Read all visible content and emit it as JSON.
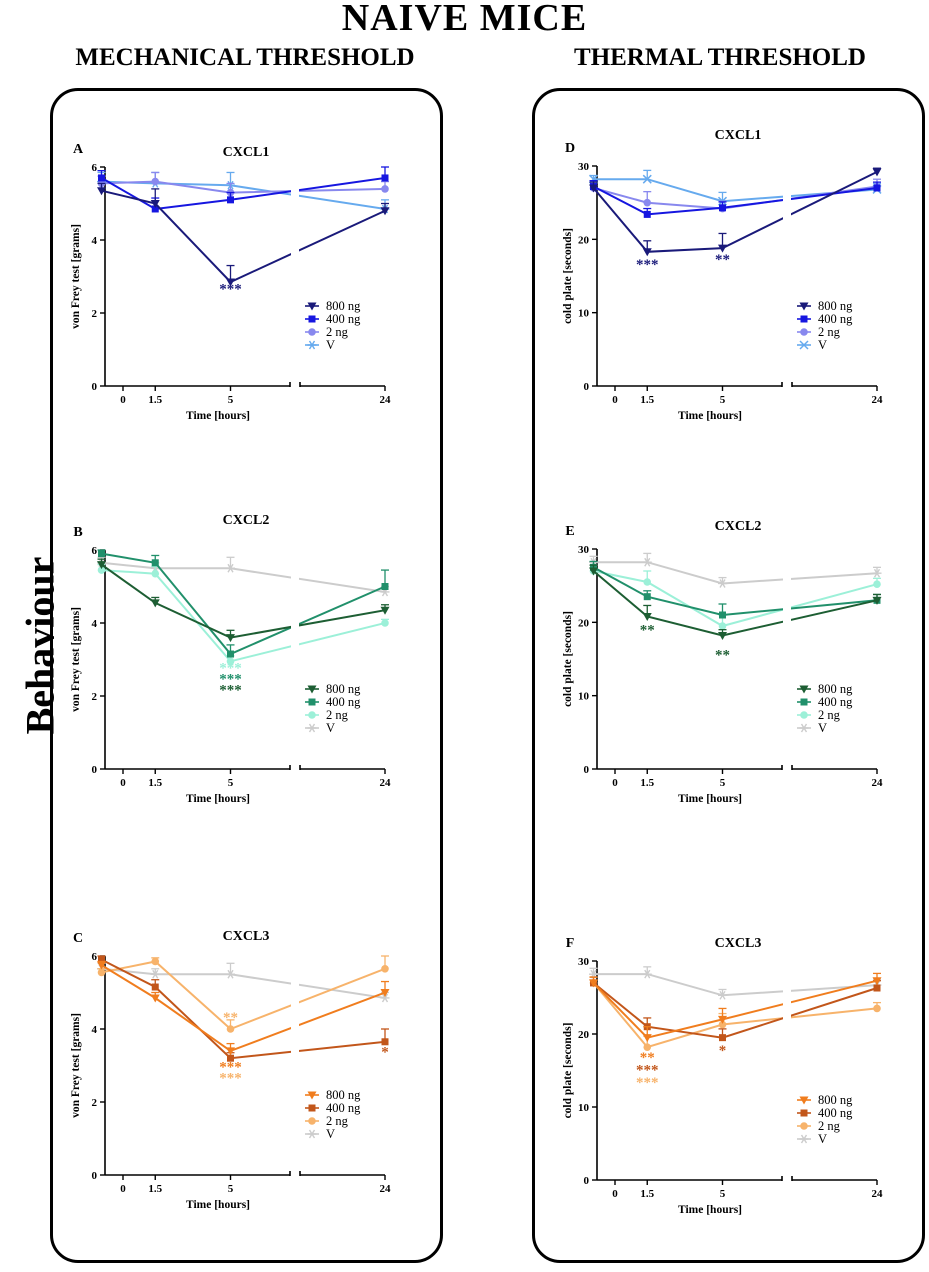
{
  "title": "NAIVE MICE",
  "side_label": "Behaviour",
  "columns": [
    {
      "title": "MECHANICAL THRESHOLD"
    },
    {
      "title": "THERMAL THRESHOLD"
    }
  ],
  "colors": {
    "cxcl1": {
      "800 ng": "#1a1a7a",
      "400 ng": "#1616e0",
      "2 ng": "#8888ee",
      "V": "#66aaee"
    },
    "cxcl2": {
      "800 ng": "#1d5e33",
      "400 ng": "#21906b",
      "2 ng": "#9cf0d8",
      "V": "#cccccc"
    },
    "cxcl3": {
      "800 ng": "#f07d1e",
      "400 ng": "#c2561a",
      "2 ng": "#f7b36b",
      "V": "#cccccc"
    }
  },
  "chart_data": [
    {
      "id": "A",
      "type": "line",
      "title": "CXCL1",
      "xlabel": "Time [hours]",
      "ylabel": "von Frey test [grams]",
      "ylim": [
        0,
        6
      ],
      "yticks": [
        "0",
        "2",
        "4",
        "6"
      ],
      "xticks": [
        "0",
        "1.5",
        "5",
        "24"
      ],
      "x_positions": [
        -1,
        1.5,
        5,
        24
      ],
      "series": [
        {
          "name": "800 ng",
          "marker": "tri",
          "values": [
            5.35,
            5.0,
            2.85,
            4.8
          ],
          "errors": [
            0.2,
            0.4,
            0.45,
            0.2
          ]
        },
        {
          "name": "400 ng",
          "marker": "square",
          "values": [
            5.7,
            4.85,
            5.1,
            5.7
          ],
          "errors": [
            0.2,
            0.3,
            0.2,
            0.3
          ]
        },
        {
          "name": "2 ng",
          "marker": "circle",
          "values": [
            5.55,
            5.6,
            5.3,
            5.4
          ],
          "errors": [
            0.2,
            0.25,
            0.25,
            0.2
          ]
        },
        {
          "name": "V",
          "marker": "star",
          "values": [
            5.6,
            5.55,
            5.5,
            4.85
          ],
          "errors": [
            0.25,
            0.3,
            0.35,
            0.25
          ]
        }
      ],
      "annotations": [
        {
          "x": 5,
          "y": 2.65,
          "text": "***",
          "series": "800 ng"
        }
      ]
    },
    {
      "id": "B",
      "type": "line",
      "title": "CXCL2",
      "xlabel": "Time [hours]",
      "ylabel": "von Frey test [grams]",
      "ylim": [
        0,
        6
      ],
      "yticks": [
        "0",
        "2",
        "4",
        "6"
      ],
      "xticks": [
        "0",
        "1.5",
        "5",
        "24"
      ],
      "x_positions": [
        -1,
        1.5,
        5,
        24
      ],
      "series": [
        {
          "name": "800 ng",
          "marker": "tri",
          "values": [
            5.6,
            4.55,
            3.6,
            4.35
          ],
          "errors": [
            0.15,
            0.15,
            0.2,
            0.15
          ]
        },
        {
          "name": "400 ng",
          "marker": "square",
          "values": [
            5.9,
            5.65,
            3.15,
            5.0
          ],
          "errors": [
            0.1,
            0.2,
            0.25,
            0.45
          ]
        },
        {
          "name": "2 ng",
          "marker": "circle",
          "values": [
            5.45,
            5.35,
            2.95,
            4.0
          ],
          "errors": [
            0.15,
            0.2,
            0.15,
            0.1
          ]
        },
        {
          "name": "V",
          "marker": "star",
          "values": [
            5.65,
            5.5,
            5.5,
            4.85
          ],
          "errors": [
            0.15,
            0.15,
            0.3,
            0.15
          ]
        }
      ],
      "annotations": [
        {
          "x": 5,
          "y": 2.75,
          "text": "***",
          "series": "2 ng"
        },
        {
          "x": 5,
          "y": 2.45,
          "text": "***",
          "series": "400 ng"
        },
        {
          "x": 5,
          "y": 2.15,
          "text": "***",
          "series": "800 ng"
        }
      ]
    },
    {
      "id": "C",
      "type": "line",
      "title": "CXCL3",
      "xlabel": "Time [hours]",
      "ylabel": "von Frey test [grams]",
      "ylim": [
        0,
        6
      ],
      "yticks": [
        "0",
        "2",
        "4",
        "6"
      ],
      "xticks": [
        "0",
        "1.5",
        "5",
        "24"
      ],
      "x_positions": [
        -1,
        1.5,
        5,
        24
      ],
      "series": [
        {
          "name": "800 ng",
          "marker": "tri",
          "values": [
            5.75,
            4.85,
            3.4,
            5.0
          ],
          "errors": [
            0.1,
            0.15,
            0.2,
            0.3
          ]
        },
        {
          "name": "400 ng",
          "marker": "square",
          "values": [
            5.9,
            5.15,
            3.2,
            3.65
          ],
          "errors": [
            0.1,
            0.2,
            0.15,
            0.35
          ]
        },
        {
          "name": "2 ng",
          "marker": "circle",
          "values": [
            5.55,
            5.85,
            4.0,
            5.65
          ],
          "errors": [
            0.1,
            0.1,
            0.25,
            0.35
          ]
        },
        {
          "name": "V",
          "marker": "star",
          "values": [
            5.65,
            5.5,
            5.5,
            4.85
          ],
          "errors": [
            0.15,
            0.15,
            0.3,
            0.15
          ]
        }
      ],
      "annotations": [
        {
          "x": 5,
          "y": 4.3,
          "text": "**",
          "series": "2 ng"
        },
        {
          "x": 5,
          "y": 2.95,
          "text": "***",
          "series": "800 ng"
        },
        {
          "x": 5,
          "y": 2.65,
          "text": "***",
          "series": "2 ng"
        },
        {
          "x": 24,
          "y": 3.35,
          "text": "*",
          "series": "400 ng"
        }
      ]
    },
    {
      "id": "D",
      "type": "line",
      "title": "CXCL1",
      "xlabel": "Time [hours]",
      "ylabel": "cold plate [seconds]",
      "ylim": [
        0,
        30
      ],
      "yticks": [
        "0",
        "10",
        "20",
        "30"
      ],
      "xticks": [
        "0",
        "1.5",
        "5",
        "24"
      ],
      "x_positions": [
        -1,
        1.5,
        5,
        24
      ],
      "series": [
        {
          "name": "800 ng",
          "marker": "tri",
          "values": [
            27.0,
            18.3,
            18.8,
            29.2
          ],
          "errors": [
            0.8,
            1.5,
            2.0,
            0.5
          ]
        },
        {
          "name": "400 ng",
          "marker": "square",
          "values": [
            27.2,
            23.4,
            24.3,
            27.0
          ],
          "errors": [
            0.8,
            0.8,
            0.8,
            0.8
          ]
        },
        {
          "name": "2 ng",
          "marker": "circle",
          "values": [
            27.0,
            25.0,
            24.2,
            27.2
          ],
          "errors": [
            1.0,
            1.5,
            1.0,
            1.0
          ]
        },
        {
          "name": "V",
          "marker": "x",
          "values": [
            28.2,
            28.2,
            25.2,
            26.8
          ],
          "errors": [
            0.5,
            1.2,
            1.2,
            0.8
          ]
        }
      ],
      "annotations": [
        {
          "x": 1.5,
          "y": 16.5,
          "text": "***",
          "series": "800 ng"
        },
        {
          "x": 5,
          "y": 17.2,
          "text": "**",
          "series": "800 ng"
        }
      ]
    },
    {
      "id": "E",
      "type": "line",
      "title": "CXCL2",
      "xlabel": "Time [hours]",
      "ylabel": "cold plate [seconds]",
      "ylim": [
        0,
        30
      ],
      "yticks": [
        "0",
        "10",
        "20",
        "30"
      ],
      "xticks": [
        "0",
        "1.5",
        "5",
        "24"
      ],
      "x_positions": [
        -1,
        1.5,
        5,
        24
      ],
      "series": [
        {
          "name": "800 ng",
          "marker": "tri",
          "values": [
            27.0,
            20.8,
            18.2,
            23.0
          ],
          "errors": [
            0.8,
            1.5,
            0.8,
            0.8
          ]
        },
        {
          "name": "400 ng",
          "marker": "square",
          "values": [
            27.5,
            23.5,
            21.0,
            23.0
          ],
          "errors": [
            0.8,
            0.8,
            1.5,
            0.8
          ]
        },
        {
          "name": "2 ng",
          "marker": "circle",
          "values": [
            27.0,
            25.5,
            19.5,
            25.2
          ],
          "errors": [
            0.8,
            1.5,
            1.5,
            0.8
          ]
        },
        {
          "name": "V",
          "marker": "star",
          "values": [
            28.2,
            28.2,
            25.3,
            26.7
          ],
          "errors": [
            0.8,
            1.2,
            0.8,
            0.8
          ]
        }
      ],
      "annotations": [
        {
          "x": 1.5,
          "y": 18.9,
          "text": "**",
          "series": "800 ng"
        },
        {
          "x": 5,
          "y": 15.5,
          "text": "**",
          "series": "800 ng"
        }
      ]
    },
    {
      "id": "F",
      "type": "line",
      "title": "CXCL3",
      "xlabel": "Time [hours]",
      "ylabel": "cold plate [seconds]",
      "ylim": [
        0,
        30
      ],
      "yticks": [
        "0",
        "10",
        "20",
        "30"
      ],
      "xticks": [
        "0",
        "1.5",
        "5",
        "24"
      ],
      "x_positions": [
        -1,
        1.5,
        5,
        24
      ],
      "series": [
        {
          "name": "800 ng",
          "marker": "tri",
          "values": [
            27.0,
            19.5,
            22.0,
            27.3
          ],
          "errors": [
            0.8,
            1.5,
            1.5,
            1.0
          ]
        },
        {
          "name": "400 ng",
          "marker": "square",
          "values": [
            27.0,
            21.0,
            19.5,
            26.3
          ],
          "errors": [
            0.8,
            1.2,
            1.2,
            1.0
          ]
        },
        {
          "name": "2 ng",
          "marker": "circle",
          "values": [
            27.0,
            18.2,
            21.3,
            23.5
          ],
          "errors": [
            0.8,
            1.5,
            1.5,
            0.8
          ]
        },
        {
          "name": "V",
          "marker": "star",
          "values": [
            28.2,
            28.2,
            25.3,
            26.7
          ],
          "errors": [
            0.8,
            1.0,
            0.8,
            0.8
          ]
        }
      ],
      "annotations": [
        {
          "x": 1.5,
          "y": 16.7,
          "text": "**",
          "series": "800 ng"
        },
        {
          "x": 1.5,
          "y": 15.0,
          "text": "***",
          "series": "400 ng"
        },
        {
          "x": 1.5,
          "y": 13.3,
          "text": "***",
          "series": "2 ng"
        },
        {
          "x": 5,
          "y": 17.7,
          "text": "*",
          "series": "400 ng"
        }
      ]
    }
  ]
}
